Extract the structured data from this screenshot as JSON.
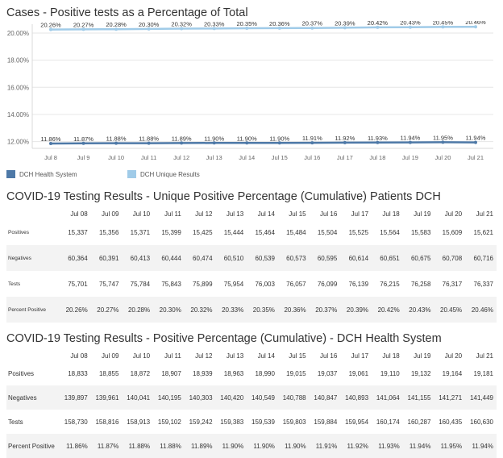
{
  "chart_title": "Cases - Positive tests as a Percentage of Total",
  "chart_data": {
    "type": "line",
    "categories": [
      "Jul 8",
      "Jul 9",
      "Jul 10",
      "Jul 11",
      "Jul 12",
      "Jul 13",
      "Jul 14",
      "Jul 15",
      "Jul 16",
      "Jul 17",
      "Jul 18",
      "Jul 19",
      "Jul 20",
      "Jul 21"
    ],
    "series": [
      {
        "name": "DCH Health System",
        "color": "#4e79a7",
        "values": [
          11.86,
          11.87,
          11.88,
          11.88,
          11.89,
          11.9,
          11.9,
          11.9,
          11.91,
          11.92,
          11.93,
          11.94,
          11.95,
          11.94
        ],
        "labels": [
          "11.86%",
          "11.87%",
          "11.88%",
          "11.88%",
          "11.89%",
          "11.90%",
          "11.90%",
          "11.90%",
          "11.91%",
          "11.92%",
          "11.93%",
          "11.94%",
          "11.95%",
          "11.94%"
        ]
      },
      {
        "name": "DCH Unique Results",
        "color": "#a0cbe8",
        "values": [
          20.26,
          20.27,
          20.28,
          20.3,
          20.32,
          20.33,
          20.35,
          20.36,
          20.37,
          20.39,
          20.42,
          20.43,
          20.45,
          20.46
        ],
        "labels": [
          "20.26%",
          "20.27%",
          "20.28%",
          "20.30%",
          "20.32%",
          "20.33%",
          "20.35%",
          "20.36%",
          "20.37%",
          "20.39%",
          "20.42%",
          "20.43%",
          "20.45%",
          "20.46%"
        ]
      }
    ],
    "y_ticks": [
      12,
      14,
      16,
      18,
      20
    ],
    "y_tick_labels": [
      "12.00%",
      "14.00%",
      "16.00%",
      "18.00%",
      "20.00%"
    ],
    "ylim": [
      11.5,
      20.65
    ],
    "grid": true,
    "legend_position": "bottom-left"
  },
  "legend": [
    "DCH Health System",
    "DCH Unique Results"
  ],
  "table1": {
    "title": "COVID-19 Testing Results - Unique Positive Percentage (Cumulative) Patients DCH",
    "headers": [
      "Jul 08",
      "Jul 09",
      "Jul 10",
      "Jul 11",
      "Jul 12",
      "Jul 13",
      "Jul 14",
      "Jul 15",
      "Jul 16",
      "Jul 17",
      "Jul 18",
      "Jul 19",
      "Jul 20",
      "Jul 21"
    ],
    "rows": [
      {
        "label": "Positives",
        "cells": [
          "15,337",
          "15,356",
          "15,371",
          "15,399",
          "15,425",
          "15,444",
          "15,464",
          "15,484",
          "15,504",
          "15,525",
          "15,564",
          "15,583",
          "15,609",
          "15,621"
        ]
      },
      {
        "label": "Negatives",
        "cells": [
          "60,364",
          "60,391",
          "60,413",
          "60,444",
          "60,474",
          "60,510",
          "60,539",
          "60,573",
          "60,595",
          "60,614",
          "60,651",
          "60,675",
          "60,708",
          "60,716"
        ]
      },
      {
        "label": "Tests",
        "cells": [
          "75,701",
          "75,747",
          "75,784",
          "75,843",
          "75,899",
          "75,954",
          "76,003",
          "76,057",
          "76,099",
          "76,139",
          "76,215",
          "76,258",
          "76,317",
          "76,337"
        ]
      },
      {
        "label": "Percent Positive",
        "cells": [
          "20.26%",
          "20.27%",
          "20.28%",
          "20.30%",
          "20.32%",
          "20.33%",
          "20.35%",
          "20.36%",
          "20.37%",
          "20.39%",
          "20.42%",
          "20.43%",
          "20.45%",
          "20.46%"
        ]
      }
    ]
  },
  "table2": {
    "title": "COVID-19 Testing Results - Positive Percentage (Cumulative) - DCH Health System",
    "headers": [
      "Jul 08",
      "Jul 09",
      "Jul 10",
      "Jul 11",
      "Jul 12",
      "Jul 13",
      "Jul 14",
      "Jul 15",
      "Jul 16",
      "Jul 17",
      "Jul 18",
      "Jul 19",
      "Jul 20",
      "Jul 21"
    ],
    "rows": [
      {
        "label": "Positives",
        "cells": [
          "18,833",
          "18,855",
          "18,872",
          "18,907",
          "18,939",
          "18,963",
          "18,990",
          "19,015",
          "19,037",
          "19,061",
          "19,110",
          "19,132",
          "19,164",
          "19,181"
        ]
      },
      {
        "label": "Negatives",
        "cells": [
          "139,897",
          "139,961",
          "140,041",
          "140,195",
          "140,303",
          "140,420",
          "140,549",
          "140,788",
          "140,847",
          "140,893",
          "141,064",
          "141,155",
          "141,271",
          "141,449"
        ]
      },
      {
        "label": "Tests",
        "cells": [
          "158,730",
          "158,816",
          "158,913",
          "159,102",
          "159,242",
          "159,383",
          "159,539",
          "159,803",
          "159,884",
          "159,954",
          "160,174",
          "160,287",
          "160,435",
          "160,630"
        ]
      },
      {
        "label": "Percent Positive",
        "cells": [
          "11.86%",
          "11.87%",
          "11.88%",
          "11.88%",
          "11.89%",
          "11.90%",
          "11.90%",
          "11.90%",
          "11.91%",
          "11.92%",
          "11.93%",
          "11.94%",
          "11.95%",
          "11.94%"
        ]
      }
    ]
  }
}
